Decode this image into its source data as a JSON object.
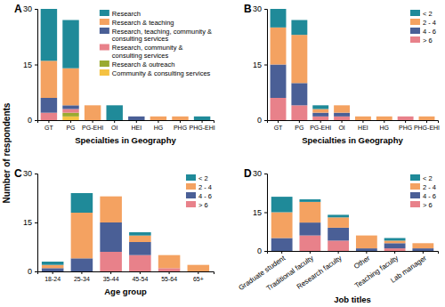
{
  "y_label": "Number of respondents",
  "chart_data": [
    {
      "type": "bar",
      "stacked": true,
      "title": "A",
      "x_label": "Specialties in Geography",
      "legend": "top-right",
      "categories": [
        "GT",
        "PG",
        "PG-EHI",
        "OI",
        "HEI",
        "HG",
        "PHG",
        "PHG-EHI"
      ],
      "series": [
        {
          "name": "Research",
          "color": "#1f8a99",
          "values": [
            14,
            13,
            0,
            4,
            0,
            0,
            0,
            1
          ]
        },
        {
          "name": "Research & teaching",
          "color": "#f4a261",
          "values": [
            10,
            10,
            4,
            0,
            0,
            1,
            1,
            0
          ]
        },
        {
          "name": "Research, teaching, community & consulting services",
          "color": "#4a5f96",
          "values": [
            4,
            1,
            0,
            0,
            1,
            0,
            0,
            0
          ]
        },
        {
          "name": "Research, community & consulting services",
          "color": "#e8818a",
          "values": [
            2,
            1,
            0,
            0,
            0,
            0,
            0,
            0
          ]
        },
        {
          "name": "Research & outreach",
          "color": "#9aaa2f",
          "values": [
            0,
            1,
            0,
            0,
            0,
            0,
            0,
            0
          ]
        },
        {
          "name": "Community & consulting services",
          "color": "#f5c242",
          "values": [
            0,
            1,
            0,
            0,
            0,
            0,
            0,
            0
          ]
        }
      ],
      "ylim": [
        0,
        30
      ],
      "yticks": [
        0,
        15,
        30
      ]
    },
    {
      "type": "bar",
      "stacked": true,
      "title": "B",
      "x_label": "Specialties in Geography",
      "legend": "top-right",
      "categories": [
        "GT",
        "PG",
        "PG-EHI",
        "OI",
        "HEI",
        "HG",
        "PHG",
        "PHG-EHI"
      ],
      "series": [
        {
          "name": "< 2",
          "color": "#1f8a99",
          "values": [
            5,
            4,
            1,
            0,
            0,
            0,
            0,
            0
          ]
        },
        {
          "name": "2 - 4",
          "color": "#f4a261",
          "values": [
            10,
            13,
            1,
            2,
            1,
            1,
            0,
            1
          ]
        },
        {
          "name": "4 - 6",
          "color": "#4a5f96",
          "values": [
            9,
            6,
            1,
            1,
            0,
            0,
            0,
            0
          ]
        },
        {
          "name": "> 6",
          "color": "#e8818a",
          "values": [
            6,
            4,
            1,
            1,
            0,
            0,
            1,
            0
          ]
        }
      ],
      "ylim": [
        0,
        30
      ],
      "yticks": [
        0,
        15,
        30
      ]
    },
    {
      "type": "bar",
      "stacked": true,
      "title": "C",
      "x_label": "Age group",
      "legend": "top-right",
      "categories": [
        "18-24",
        "25-34",
        "35-44",
        "45-54",
        "55-64",
        "65+"
      ],
      "series": [
        {
          "name": "< 2",
          "color": "#1f8a99",
          "values": [
            1,
            6,
            0,
            1,
            0,
            0
          ]
        },
        {
          "name": "2 - 4",
          "color": "#f4a261",
          "values": [
            1,
            14,
            8,
            2,
            4,
            2
          ]
        },
        {
          "name": "4 - 6",
          "color": "#4a5f96",
          "values": [
            1,
            4,
            9,
            4,
            0,
            0
          ]
        },
        {
          "name": "> 6",
          "color": "#e8818a",
          "values": [
            0,
            0,
            6,
            5,
            1,
            0
          ]
        }
      ],
      "ylim": [
        0,
        30
      ],
      "yticks": [
        0,
        15,
        30
      ]
    },
    {
      "type": "bar",
      "stacked": true,
      "title": "D",
      "x_label": "Job titles",
      "legend": "top-right",
      "categories": [
        "Graduate student",
        "Traditional faculty",
        "Research faculty",
        "Other",
        "Teaching faculty",
        "Lab manager"
      ],
      "series": [
        {
          "name": "< 2",
          "color": "#1f8a99",
          "values": [
            6,
            1,
            1,
            0,
            1,
            0
          ]
        },
        {
          "name": "2 - 4",
          "color": "#f4a261",
          "values": [
            10,
            8,
            4,
            5,
            1,
            2
          ]
        },
        {
          "name": "4 - 6",
          "color": "#4a5f96",
          "values": [
            5,
            5,
            5,
            1,
            2,
            1
          ]
        },
        {
          "name": "> 6",
          "color": "#e8818a",
          "values": [
            0,
            6,
            4,
            0,
            1,
            0
          ]
        }
      ],
      "ylim": [
        0,
        30
      ],
      "yticks": [
        0,
        15,
        30
      ]
    }
  ]
}
